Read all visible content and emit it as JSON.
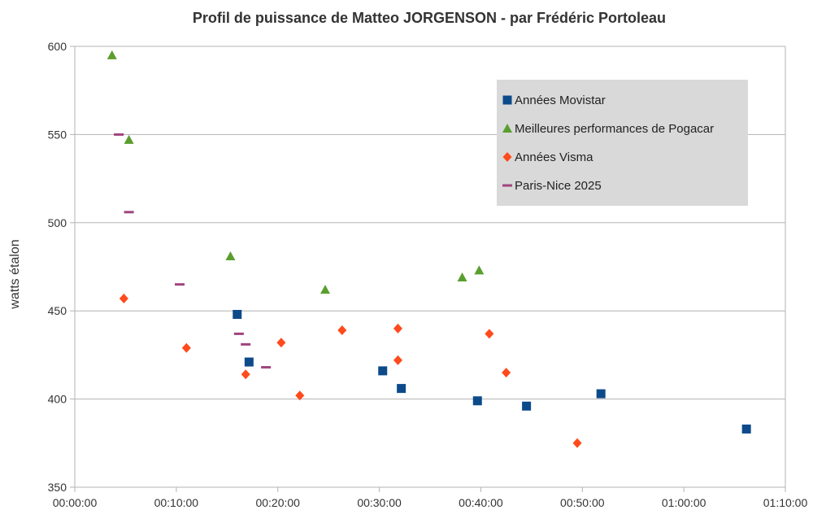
{
  "chart_data": {
    "type": "scatter",
    "title": "Profil de puissance de Matteo JORGENSON - par Frédéric Portoleau",
    "xlabel": "",
    "ylabel": "watts étalon",
    "xlim": [
      0,
      4200
    ],
    "ylim": [
      350,
      600
    ],
    "x_ticks": [
      {
        "value": 0,
        "label": "00:00:00"
      },
      {
        "value": 600,
        "label": "00:10:00"
      },
      {
        "value": 1200,
        "label": "00:20:00"
      },
      {
        "value": 1800,
        "label": "00:30:00"
      },
      {
        "value": 2400,
        "label": "00:40:00"
      },
      {
        "value": 3000,
        "label": "00:50:00"
      },
      {
        "value": 3600,
        "label": "01:00:00"
      },
      {
        "value": 4200,
        "label": "01:10:00"
      }
    ],
    "y_ticks": [
      350,
      400,
      450,
      500,
      550,
      600
    ],
    "grid": "horizontal",
    "legend_position": "top-right",
    "series": [
      {
        "name": "Années Movistar",
        "marker": "square",
        "color": "#0d4a8a",
        "points": [
          {
            "x": "00:16:00",
            "y": 448
          },
          {
            "x": "00:17:10",
            "y": 421
          },
          {
            "x": "00:30:20",
            "y": 416
          },
          {
            "x": "00:32:10",
            "y": 406
          },
          {
            "x": "00:39:40",
            "y": 399
          },
          {
            "x": "00:44:30",
            "y": 396
          },
          {
            "x": "00:51:50",
            "y": 403
          },
          {
            "x": "01:06:10",
            "y": 383
          }
        ]
      },
      {
        "name": "Meilleures performances de Pogacar",
        "marker": "triangle",
        "color": "#5a9e2f",
        "points": [
          {
            "x": "00:03:40",
            "y": 595
          },
          {
            "x": "00:05:20",
            "y": 547
          },
          {
            "x": "00:15:20",
            "y": 481
          },
          {
            "x": "00:24:40",
            "y": 462
          },
          {
            "x": "00:38:10",
            "y": 469
          },
          {
            "x": "00:39:50",
            "y": 473
          }
        ]
      },
      {
        "name": "Années Visma",
        "marker": "diamond",
        "color": "#ff4a1c",
        "points": [
          {
            "x": "00:04:50",
            "y": 457
          },
          {
            "x": "00:11:00",
            "y": 429
          },
          {
            "x": "00:16:50",
            "y": 414
          },
          {
            "x": "00:20:20",
            "y": 432
          },
          {
            "x": "00:22:10",
            "y": 402
          },
          {
            "x": "00:26:20",
            "y": 439
          },
          {
            "x": "00:31:50",
            "y": 440
          },
          {
            "x": "00:31:50",
            "y": 422
          },
          {
            "x": "00:40:50",
            "y": 437
          },
          {
            "x": "00:42:30",
            "y": 415
          },
          {
            "x": "00:49:30",
            "y": 375
          }
        ]
      },
      {
        "name": "Paris-Nice 2025",
        "marker": "dash",
        "color": "#a0447e",
        "points": [
          {
            "x": "00:04:20",
            "y": 550
          },
          {
            "x": "00:05:20",
            "y": 506
          },
          {
            "x": "00:10:20",
            "y": 465
          },
          {
            "x": "00:16:10",
            "y": 437
          },
          {
            "x": "00:16:50",
            "y": 431
          },
          {
            "x": "00:18:50",
            "y": 418
          }
        ]
      }
    ]
  }
}
